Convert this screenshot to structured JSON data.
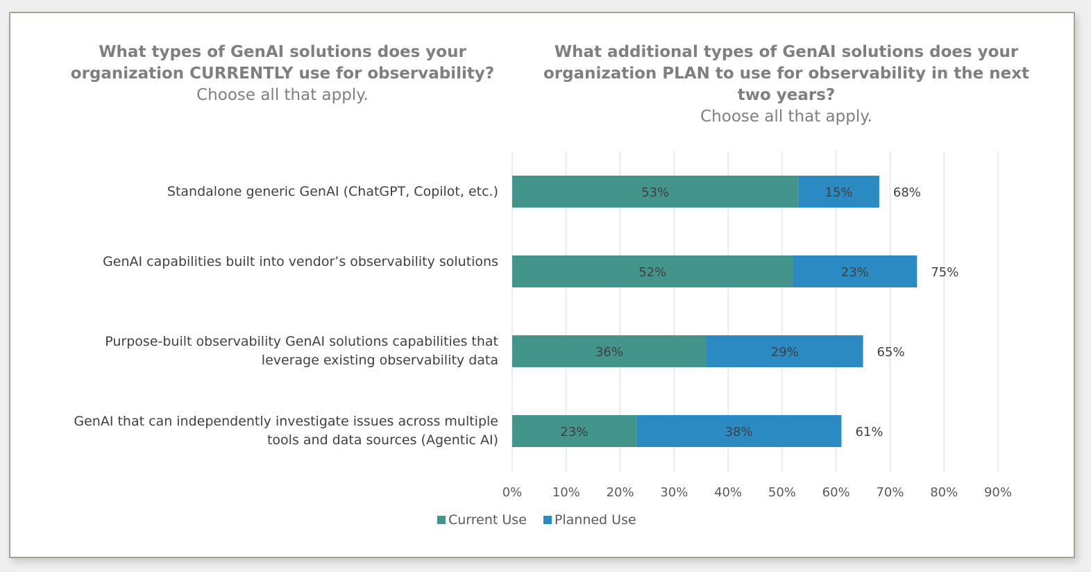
{
  "left_title": {
    "question": "What types of GenAI solutions does your organization CURRENTLY use for observability?",
    "instruction": "Choose all that apply."
  },
  "right_title": {
    "question": "What additional types of GenAI solutions does your organization PLAN to use for observability in the next two years?",
    "instruction": "Choose all that apply."
  },
  "chart_data": {
    "type": "bar",
    "orientation": "horizontal",
    "stacked": true,
    "categories": [
      "Standalone generic GenAI (ChatGPT, Copilot, etc.)",
      "GenAI capabilities built into vendor’s observability solutions",
      "Purpose-built observability GenAI solutions capabilities that leverage existing observability data",
      "GenAI that can independently investigate issues across multiple tools and data sources (Agentic AI)"
    ],
    "series": [
      {
        "name": "Current Use",
        "values": [
          53,
          52,
          36,
          23
        ],
        "color": "#43948a"
      },
      {
        "name": "Planned Use",
        "values": [
          15,
          23,
          29,
          38
        ],
        "color": "#2a8ac1"
      }
    ],
    "totals": [
      68,
      75,
      65,
      61
    ],
    "xlim": [
      0,
      90
    ],
    "xticks": [
      "0%",
      "10%",
      "20%",
      "30%",
      "40%",
      "50%",
      "60%",
      "70%",
      "80%",
      "90%"
    ],
    "grid": true,
    "legend": "bottom"
  }
}
